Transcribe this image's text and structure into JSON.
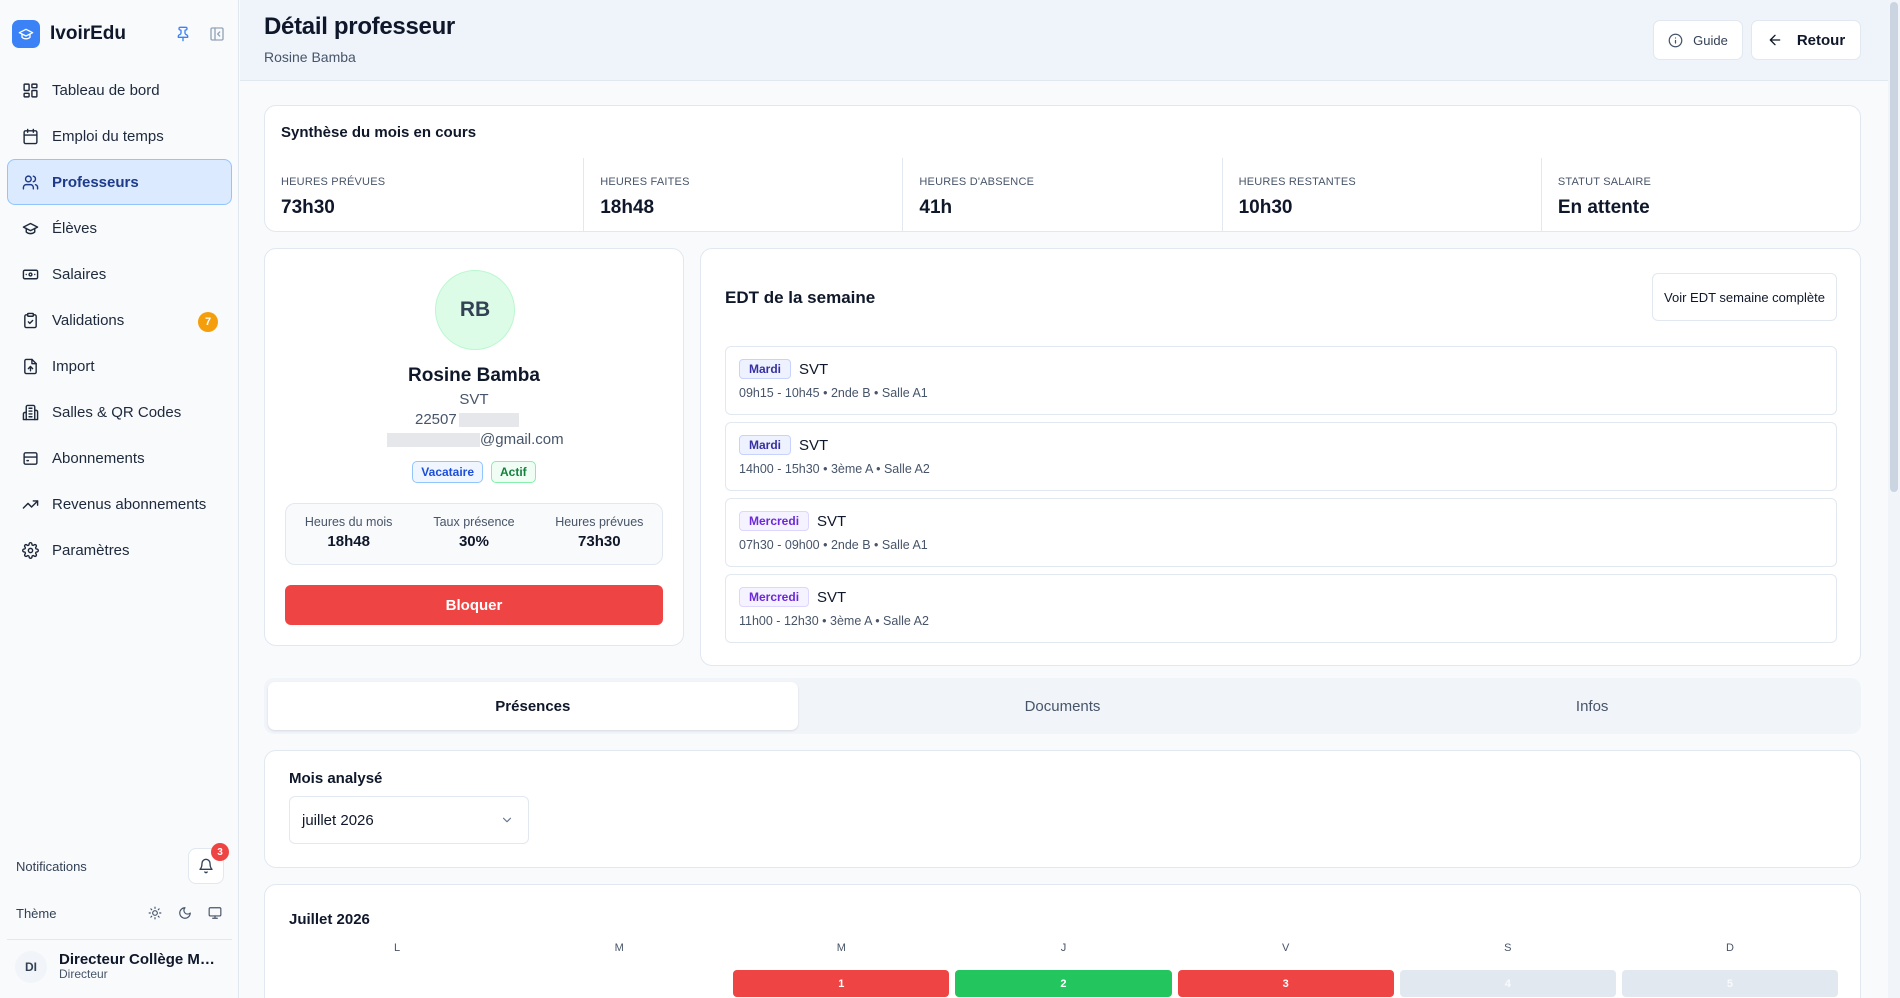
{
  "app": {
    "name": "IvoirEdu"
  },
  "sidebar": {
    "items": [
      {
        "label": "Tableau de bord",
        "icon": "dashboard-icon"
      },
      {
        "label": "Emploi du temps",
        "icon": "calendar-icon"
      },
      {
        "label": "Professeurs",
        "icon": "users-icon",
        "active": true
      },
      {
        "label": "Élèves",
        "icon": "graduation-cap-icon"
      },
      {
        "label": "Salaires",
        "icon": "banknote-icon"
      },
      {
        "label": "Validations",
        "icon": "clipboard-check-icon",
        "badge": "7"
      },
      {
        "label": "Import",
        "icon": "file-import-icon"
      },
      {
        "label": "Salles & QR Codes",
        "icon": "building-icon"
      },
      {
        "label": "Abonnements",
        "icon": "inbox-icon"
      },
      {
        "label": "Revenus abonnements",
        "icon": "trending-up-icon"
      },
      {
        "label": "Paramètres",
        "icon": "gear-icon"
      }
    ],
    "notifications_label": "Notifications",
    "notifications_count": "3",
    "theme_label": "Thème",
    "user": {
      "initials": "DI",
      "name": "Directeur Collège Mod...",
      "role": "Directeur"
    }
  },
  "header": {
    "title": "Détail professeur",
    "subtitle": "Rosine Bamba",
    "guide_label": "Guide",
    "back_label": "Retour"
  },
  "summary": {
    "title": "Synthèse du mois en cours",
    "stats": [
      {
        "label": "Heures prévues",
        "value": "73h30"
      },
      {
        "label": "Heures faites",
        "value": "18h48"
      },
      {
        "label": "Heures d'absence",
        "value": "41h"
      },
      {
        "label": "Heures restantes",
        "value": "10h30"
      },
      {
        "label": "Statut salaire",
        "value": "En attente"
      }
    ]
  },
  "profile": {
    "initials": "RB",
    "name": "Rosine Bamba",
    "subject": "SVT",
    "phone_prefix": "22507",
    "email_suffix": "@gmail.com",
    "tags": [
      "Vacataire",
      "Actif"
    ],
    "stats": [
      {
        "label": "Heures du mois",
        "value": "18h48"
      },
      {
        "label": "Taux présence",
        "value": "30%"
      },
      {
        "label": "Heures prévues",
        "value": "73h30"
      }
    ],
    "block_label": "Bloquer"
  },
  "schedule": {
    "title": "EDT de la semaine",
    "full_week_label": "Voir EDT semaine complète",
    "items": [
      {
        "day": "Mardi",
        "subject": "SVT",
        "detail": "09h15 - 10h45 • 2nde B • Salle A1"
      },
      {
        "day": "Mardi",
        "subject": "SVT",
        "detail": "14h00 - 15h30 • 3ème A • Salle A2"
      },
      {
        "day": "Mercredi",
        "subject": "SVT",
        "detail": "07h30 - 09h00 • 2nde B • Salle A1"
      },
      {
        "day": "Mercredi",
        "subject": "SVT",
        "detail": "11h00 - 12h30 • 3ème A • Salle A2"
      }
    ]
  },
  "tabs": [
    {
      "label": "Présences",
      "active": true
    },
    {
      "label": "Documents"
    },
    {
      "label": "Infos"
    }
  ],
  "month_filter": {
    "label": "Mois analysé",
    "value": "juillet 2026"
  },
  "calendar": {
    "title": "Juillet 2026",
    "weekdays": [
      "L",
      "M",
      "M",
      "J",
      "V",
      "S",
      "D"
    ],
    "first_row": [
      {
        "day": "",
        "status": "empty"
      },
      {
        "day": "",
        "status": "empty"
      },
      {
        "day": "1",
        "status": "absent"
      },
      {
        "day": "2",
        "status": "present"
      },
      {
        "day": "3",
        "status": "absent"
      },
      {
        "day": "4",
        "status": "none"
      },
      {
        "day": "5",
        "status": "none"
      }
    ]
  },
  "colors": {
    "primary": "#3b82f6",
    "danger": "#ef4444",
    "success": "#22c55e",
    "warning": "#f59e0b"
  }
}
